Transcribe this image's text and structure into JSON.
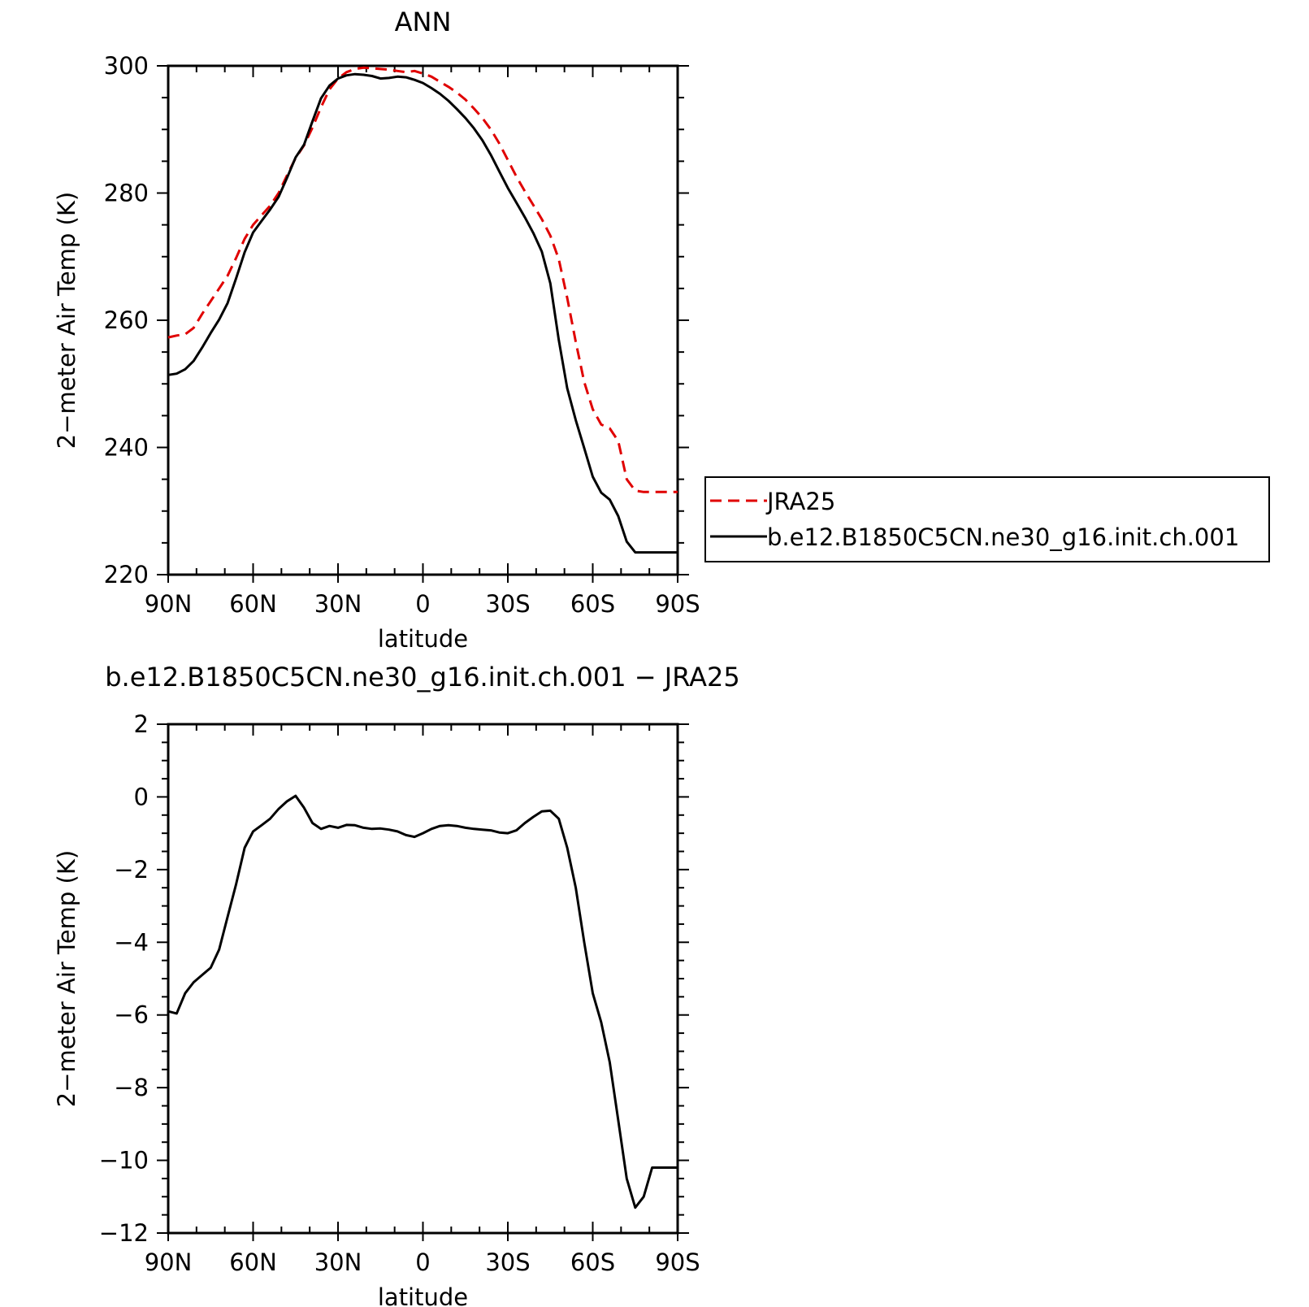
{
  "chart_data": [
    {
      "type": "line",
      "title": "ANN",
      "xlabel": "latitude",
      "ylabel": "2−meter Air Temp (K)",
      "xlim": [
        90,
        -90
      ],
      "ylim": [
        220,
        300
      ],
      "xticks": [
        90,
        60,
        30,
        0,
        -30,
        -60,
        -90
      ],
      "xtick_labels": [
        "90N",
        "60N",
        "30N",
        "0",
        "30S",
        "60S",
        "90S"
      ],
      "yticks": [
        220,
        240,
        260,
        280,
        300
      ],
      "ytick_labels": [
        "220",
        "240",
        "260",
        "280",
        "300"
      ],
      "grid": false,
      "legend": "right, outside",
      "series": [
        {
          "name": "JRA25",
          "color": "#e00000",
          "dash": "dashed",
          "x": [
            90,
            87,
            84,
            81,
            78,
            75,
            72,
            69,
            66,
            63,
            60,
            57,
            54,
            51,
            48,
            45,
            42,
            39,
            36,
            33,
            30,
            27,
            24,
            21,
            18,
            15,
            12,
            9,
            6,
            3,
            0,
            -3,
            -6,
            -9,
            -12,
            -15,
            -18,
            -21,
            -24,
            -27,
            -30,
            -33,
            -36,
            -39,
            -42,
            -45,
            -48,
            -51,
            -54,
            -57,
            -60,
            -63,
            -66,
            -69,
            -72,
            -75,
            -78,
            -81,
            -84,
            -87,
            -90
          ],
          "y": [
            257.3,
            257.6,
            257.8,
            258.8,
            261.0,
            263.0,
            265.0,
            267.0,
            269.8,
            272.8,
            275.0,
            276.5,
            278.0,
            280.0,
            282.8,
            285.5,
            287.5,
            290.3,
            293.5,
            296.3,
            298.0,
            299.0,
            299.5,
            299.7,
            299.6,
            299.5,
            299.4,
            299.2,
            299.0,
            299.2,
            298.8,
            298.3,
            297.5,
            296.7,
            295.8,
            294.7,
            293.3,
            291.8,
            290.0,
            287.8,
            285.2,
            282.6,
            280.3,
            278.1,
            275.9,
            273.3,
            269.6,
            263.5,
            256.6,
            250.3,
            246.0,
            243.6,
            243.0,
            241.0,
            235.0,
            233.2,
            233.0,
            233.0,
            233.0,
            233.0,
            233.0
          ]
        },
        {
          "name": "b.e12.B1850C5CN.ne30_g16.init.ch.001",
          "color": "#000000",
          "dash": "solid",
          "x": [
            90,
            87,
            84,
            81,
            78,
            75,
            72,
            69,
            66,
            63,
            60,
            57,
            54,
            51,
            48,
            45,
            42,
            39,
            36,
            33,
            30,
            27,
            24,
            21,
            18,
            15,
            12,
            9,
            6,
            3,
            0,
            -3,
            -6,
            -9,
            -12,
            -15,
            -18,
            -21,
            -24,
            -27,
            -30,
            -33,
            -36,
            -39,
            -42,
            -45,
            -48,
            -51,
            -54,
            -57,
            -60,
            -63,
            -66,
            -69,
            -72,
            -75,
            -78,
            -81,
            -84,
            -87,
            -90
          ],
          "y": [
            251.4,
            251.6,
            252.3,
            253.6,
            255.7,
            258.0,
            260.1,
            262.7,
            266.6,
            270.7,
            273.8,
            275.6,
            277.4,
            279.4,
            282.4,
            285.6,
            287.6,
            291.3,
            294.9,
            296.9,
            298.0,
            298.5,
            298.7,
            298.6,
            298.4,
            298.0,
            298.1,
            298.3,
            298.2,
            297.8,
            297.3,
            296.5,
            295.6,
            294.5,
            293.2,
            291.8,
            290.2,
            288.3,
            286.0,
            283.4,
            280.8,
            278.5,
            276.2,
            273.7,
            270.8,
            265.8,
            256.9,
            249.3,
            244.3,
            239.9,
            235.4,
            232.9,
            231.8,
            229.2,
            225.2,
            223.5,
            223.5,
            223.5,
            223.5,
            223.5,
            223.5
          ]
        }
      ]
    },
    {
      "type": "line",
      "title": "b.e12.B1850C5CN.ne30_g16.init.ch.001  −  JRA25",
      "xlabel": "latitude",
      "ylabel": "2−meter Air Temp (K)",
      "xlim": [
        90,
        -90
      ],
      "ylim": [
        -12,
        2
      ],
      "xticks": [
        90,
        60,
        30,
        0,
        -30,
        -60,
        -90
      ],
      "xtick_labels": [
        "90N",
        "60N",
        "30N",
        "0",
        "30S",
        "60S",
        "90S"
      ],
      "yticks": [
        -12,
        -10,
        -8,
        -6,
        -4,
        -2,
        0,
        2
      ],
      "ytick_labels": [
        "−12",
        "−10",
        "−8",
        "−6",
        "−4",
        "−2",
        "0",
        "2"
      ],
      "grid": false,
      "series": [
        {
          "color": "#000000",
          "dash": "solid",
          "x": [
            90,
            87,
            84,
            81,
            78,
            75,
            72,
            69,
            66,
            63,
            60,
            57,
            54,
            51,
            48,
            45,
            42,
            39,
            36,
            33,
            30,
            27,
            24,
            21,
            18,
            15,
            12,
            9,
            6,
            3,
            0,
            -3,
            -6,
            -9,
            -12,
            -15,
            -18,
            -21,
            -24,
            -27,
            -30,
            -33,
            -36,
            -39,
            -42,
            -45,
            -48,
            -51,
            -54,
            -57,
            -60,
            -63,
            -66,
            -69,
            -72,
            -75,
            -78,
            -81,
            -84,
            -87,
            -90
          ],
          "y": [
            -5.9,
            -5.96,
            -5.4,
            -5.1,
            -4.9,
            -4.7,
            -4.2,
            -3.3,
            -2.4,
            -1.4,
            -0.95,
            -0.78,
            -0.6,
            -0.33,
            -0.12,
            0.03,
            -0.3,
            -0.72,
            -0.88,
            -0.8,
            -0.85,
            -0.77,
            -0.78,
            -0.85,
            -0.88,
            -0.87,
            -0.9,
            -0.95,
            -1.05,
            -1.1,
            -1.0,
            -0.88,
            -0.8,
            -0.78,
            -0.8,
            -0.85,
            -0.88,
            -0.9,
            -0.92,
            -0.98,
            -1.0,
            -0.92,
            -0.72,
            -0.55,
            -0.4,
            -0.38,
            -0.6,
            -1.4,
            -2.5,
            -4.0,
            -5.4,
            -6.2,
            -7.3,
            -8.9,
            -10.5,
            -11.3,
            -11.0,
            -10.2,
            -10.2,
            -10.2,
            -10.2
          ]
        }
      ]
    }
  ]
}
